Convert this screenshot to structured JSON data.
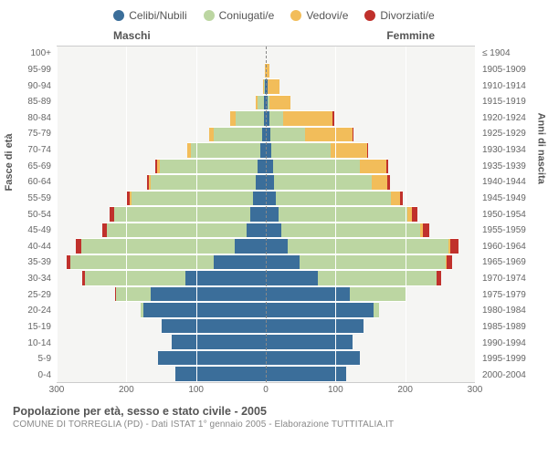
{
  "legend": [
    {
      "label": "Celibi/Nubili",
      "color": "#3b6e9a"
    },
    {
      "label": "Coniugati/e",
      "color": "#bcd6a2"
    },
    {
      "label": "Vedovi/e",
      "color": "#f2bd5a"
    },
    {
      "label": "Divorziati/e",
      "color": "#c0312c"
    }
  ],
  "header_left": "Maschi",
  "header_right": "Femmine",
  "axis_left": "Fasce di età",
  "axis_right": "Anni di nascita",
  "xmax": 300,
  "xticks": [
    300,
    200,
    100,
    0,
    100,
    200,
    300
  ],
  "title": "Popolazione per età, sesso e stato civile - 2005",
  "subtitle": "COMUNE DI TORREGLIA (PD) - Dati ISTAT 1° gennaio 2005 - Elaborazione TUTTITALIA.IT",
  "colors": {
    "single": "#3b6e9a",
    "married": "#bcd6a2",
    "widowed": "#f2bd5a",
    "divorced": "#c0312c"
  },
  "rows": [
    {
      "age": "100+",
      "birth": "≤ 1904",
      "m": [
        0,
        0,
        0,
        0
      ],
      "f": [
        0,
        0,
        0,
        0
      ]
    },
    {
      "age": "95-99",
      "birth": "1905-1909",
      "m": [
        0,
        0,
        1,
        0
      ],
      "f": [
        0,
        0,
        5,
        0
      ]
    },
    {
      "age": "90-94",
      "birth": "1910-1914",
      "m": [
        1,
        2,
        1,
        0
      ],
      "f": [
        2,
        0,
        18,
        0
      ]
    },
    {
      "age": "85-89",
      "birth": "1915-1919",
      "m": [
        2,
        10,
        3,
        0
      ],
      "f": [
        2,
        3,
        30,
        0
      ]
    },
    {
      "age": "80-84",
      "birth": "1920-1924",
      "m": [
        3,
        40,
        8,
        0
      ],
      "f": [
        5,
        20,
        70,
        3
      ]
    },
    {
      "age": "75-79",
      "birth": "1925-1929",
      "m": [
        5,
        70,
        6,
        0
      ],
      "f": [
        6,
        50,
        68,
        2
      ]
    },
    {
      "age": "70-74",
      "birth": "1930-1934",
      "m": [
        8,
        100,
        5,
        0
      ],
      "f": [
        8,
        85,
        52,
        2
      ]
    },
    {
      "age": "65-69",
      "birth": "1935-1939",
      "m": [
        12,
        140,
        4,
        2
      ],
      "f": [
        10,
        125,
        38,
        3
      ]
    },
    {
      "age": "60-64",
      "birth": "1940-1944",
      "m": [
        15,
        150,
        3,
        3
      ],
      "f": [
        12,
        140,
        22,
        4
      ]
    },
    {
      "age": "55-59",
      "birth": "1945-1949",
      "m": [
        18,
        175,
        2,
        5
      ],
      "f": [
        15,
        165,
        12,
        5
      ]
    },
    {
      "age": "50-54",
      "birth": "1950-1954",
      "m": [
        22,
        195,
        1,
        6
      ],
      "f": [
        18,
        185,
        7,
        7
      ]
    },
    {
      "age": "45-49",
      "birth": "1955-1959",
      "m": [
        28,
        200,
        0,
        7
      ],
      "f": [
        22,
        200,
        4,
        8
      ]
    },
    {
      "age": "40-44",
      "birth": "1960-1964",
      "m": [
        45,
        220,
        0,
        8
      ],
      "f": [
        32,
        230,
        2,
        12
      ]
    },
    {
      "age": "35-39",
      "birth": "1965-1969",
      "m": [
        75,
        205,
        0,
        6
      ],
      "f": [
        48,
        210,
        1,
        8
      ]
    },
    {
      "age": "30-34",
      "birth": "1970-1974",
      "m": [
        115,
        145,
        0,
        4
      ],
      "f": [
        75,
        170,
        0,
        6
      ]
    },
    {
      "age": "25-29",
      "birth": "1975-1979",
      "m": [
        165,
        50,
        0,
        1
      ],
      "f": [
        120,
        80,
        0,
        2
      ]
    },
    {
      "age": "20-24",
      "birth": "1980-1984",
      "m": [
        175,
        5,
        0,
        0
      ],
      "f": [
        155,
        8,
        0,
        0
      ]
    },
    {
      "age": "15-19",
      "birth": "1985-1989",
      "m": [
        150,
        0,
        0,
        0
      ],
      "f": [
        140,
        0,
        0,
        0
      ]
    },
    {
      "age": "10-14",
      "birth": "1990-1994",
      "m": [
        135,
        0,
        0,
        0
      ],
      "f": [
        125,
        0,
        0,
        0
      ]
    },
    {
      "age": "5-9",
      "birth": "1995-1999",
      "m": [
        155,
        0,
        0,
        0
      ],
      "f": [
        135,
        0,
        0,
        0
      ]
    },
    {
      "age": "0-4",
      "birth": "2000-2004",
      "m": [
        130,
        0,
        0,
        0
      ],
      "f": [
        115,
        0,
        0,
        0
      ]
    }
  ]
}
